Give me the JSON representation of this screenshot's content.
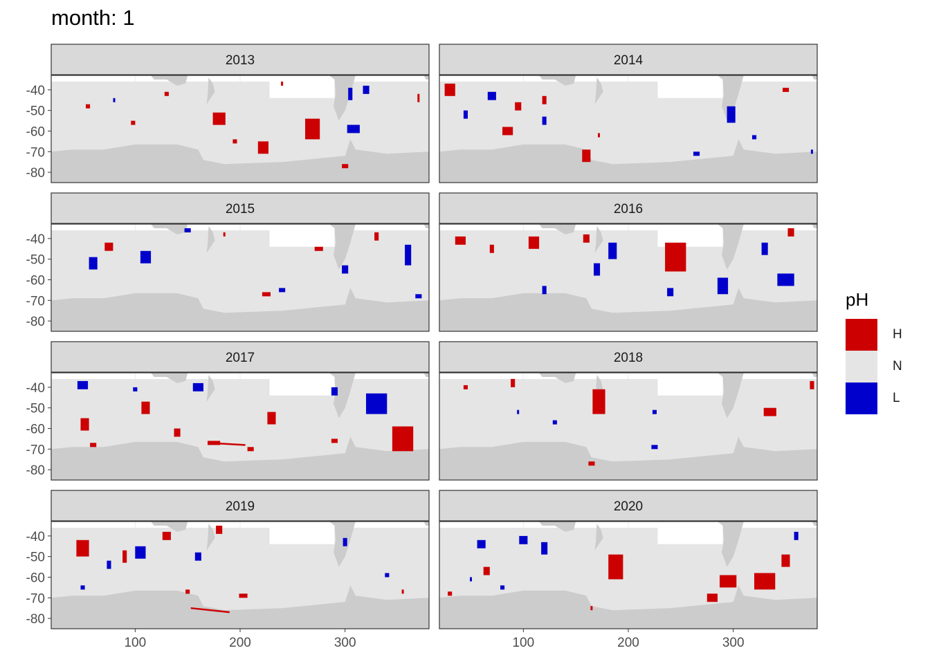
{
  "title": "month: 1",
  "colors": {
    "H": "#cc0000",
    "N": "#e5e5e5",
    "L": "#0000cc",
    "land": "#cccccc",
    "strip_bg": "#d9d9d9",
    "grid": "#ebebeb",
    "panel_border": "#333333"
  },
  "legend": {
    "title": "pH",
    "items": [
      {
        "key": "H",
        "label": "H",
        "color": "#cc0000"
      },
      {
        "key": "N",
        "label": "N",
        "color": "#e5e5e5"
      },
      {
        "key": "L",
        "label": "L",
        "color": "#0000cc"
      }
    ]
  },
  "chart_data": {
    "type": "heatmap",
    "facet_by": "year",
    "xlim": [
      20,
      380
    ],
    "ylim": [
      -85,
      -33
    ],
    "x_ticks": [
      100,
      200,
      300
    ],
    "y_ticks": [
      -40,
      -50,
      -60,
      -70,
      -80
    ],
    "categories": [
      "H",
      "N",
      "L"
    ],
    "panels": [
      {
        "year": "2013",
        "H": [
          [
            269,
            -59,
            7,
            5
          ],
          [
            222,
            -68,
            5,
            3
          ],
          [
            195,
            -65,
            2,
            1
          ],
          [
            300,
            -77,
            3,
            1
          ],
          [
            130,
            -42,
            2,
            1
          ],
          [
            55,
            -48,
            2,
            1
          ],
          [
            98,
            -56,
            2,
            1
          ],
          [
            370,
            -44,
            1,
            2
          ],
          [
            180,
            -54,
            6,
            3
          ],
          [
            240,
            -37,
            1,
            1
          ]
        ],
        "L": [
          [
            308,
            -59,
            6,
            2
          ],
          [
            320,
            -40,
            3,
            2
          ],
          [
            80,
            -45,
            1,
            1
          ],
          [
            305,
            -42,
            2,
            3
          ]
        ]
      },
      {
        "year": "2014",
        "H": [
          [
            30,
            -40,
            5,
            3
          ],
          [
            85,
            -60,
            5,
            2
          ],
          [
            160,
            -72,
            4,
            3
          ],
          [
            95,
            -48,
            3,
            2
          ],
          [
            350,
            -40,
            3,
            1
          ],
          [
            120,
            -45,
            2,
            2
          ],
          [
            172,
            -62,
            1,
            1
          ]
        ],
        "L": [
          [
            298,
            -52,
            4,
            4
          ],
          [
            70,
            -43,
            4,
            2
          ],
          [
            320,
            -63,
            2,
            1
          ],
          [
            265,
            -71,
            3,
            1
          ],
          [
            375,
            -70,
            1,
            1
          ],
          [
            45,
            -52,
            2,
            2
          ],
          [
            120,
            -55,
            2,
            2
          ]
        ]
      },
      {
        "year": "2015",
        "H": [
          [
            75,
            -44,
            4,
            2
          ],
          [
            225,
            -67,
            4,
            1
          ],
          [
            275,
            -45,
            4,
            1
          ],
          [
            330,
            -39,
            2,
            2
          ],
          [
            185,
            -38,
            1,
            1
          ]
        ],
        "L": [
          [
            60,
            -52,
            4,
            3
          ],
          [
            110,
            -49,
            5,
            3
          ],
          [
            150,
            -36,
            3,
            1
          ],
          [
            370,
            -68,
            3,
            1
          ],
          [
            360,
            -48,
            3,
            5
          ],
          [
            240,
            -65,
            3,
            1
          ],
          [
            300,
            -55,
            3,
            2
          ]
        ]
      },
      {
        "year": "2016",
        "H": [
          [
            245,
            -49,
            10,
            7
          ],
          [
            110,
            -42,
            5,
            3
          ],
          [
            160,
            -40,
            3,
            2
          ],
          [
            40,
            -41,
            5,
            2
          ],
          [
            355,
            -37,
            3,
            2
          ],
          [
            70,
            -45,
            2,
            2
          ]
        ],
        "L": [
          [
            185,
            -46,
            4,
            4
          ],
          [
            170,
            -55,
            3,
            3
          ],
          [
            290,
            -63,
            5,
            4
          ],
          [
            350,
            -60,
            8,
            3
          ],
          [
            240,
            -66,
            3,
            2
          ],
          [
            120,
            -65,
            2,
            2
          ],
          [
            330,
            -45,
            3,
            3
          ]
        ]
      },
      {
        "year": "2017",
        "H": [
          [
            355,
            -65,
            10,
            6
          ],
          [
            52,
            -58,
            4,
            3
          ],
          [
            110,
            -50,
            4,
            3
          ],
          [
            175,
            -67,
            6,
            1
          ],
          [
            230,
            -55,
            4,
            3
          ],
          [
            210,
            -70,
            3,
            1
          ],
          [
            290,
            -66,
            3,
            1
          ],
          [
            60,
            -68,
            3,
            1
          ],
          [
            140,
            -62,
            3,
            2
          ]
        ],
        "L": [
          [
            330,
            -48,
            10,
            5
          ],
          [
            290,
            -42,
            3,
            2
          ],
          [
            50,
            -39,
            5,
            2
          ],
          [
            160,
            -40,
            5,
            2
          ],
          [
            100,
            -41,
            2,
            1
          ]
        ],
        "lines": [
          [
            170,
            -67,
            205,
            -68
          ]
        ]
      },
      {
        "year": "2018",
        "H": [
          [
            172,
            -47,
            6,
            6
          ],
          [
            335,
            -52,
            6,
            2
          ],
          [
            90,
            -38,
            2,
            2
          ],
          [
            165,
            -77,
            3,
            1
          ],
          [
            375,
            -39,
            2,
            2
          ],
          [
            45,
            -40,
            2,
            1
          ]
        ],
        "L": [
          [
            225,
            -52,
            2,
            1
          ],
          [
            225,
            -69,
            3,
            1
          ],
          [
            95,
            -52,
            1,
            1
          ],
          [
            130,
            -57,
            2,
            1
          ]
        ]
      },
      {
        "year": "2019",
        "H": [
          [
            50,
            -46,
            6,
            4
          ],
          [
            203,
            -69,
            4,
            1
          ],
          [
            90,
            -50,
            2,
            3
          ],
          [
            130,
            -40,
            4,
            2
          ],
          [
            150,
            -67,
            2,
            1
          ],
          [
            180,
            -37,
            3,
            2
          ],
          [
            355,
            -67,
            1,
            1
          ]
        ],
        "L": [
          [
            105,
            -48,
            5,
            3
          ],
          [
            75,
            -54,
            2,
            2
          ],
          [
            50,
            -65,
            2,
            1
          ],
          [
            160,
            -50,
            3,
            2
          ],
          [
            300,
            -43,
            2,
            2
          ],
          [
            340,
            -59,
            2,
            1
          ]
        ],
        "lines": [
          [
            153,
            -75,
            190,
            -77
          ]
        ]
      },
      {
        "year": "2020",
        "H": [
          [
            188,
            -55,
            7,
            6
          ],
          [
            295,
            -62,
            8,
            3
          ],
          [
            330,
            -62,
            10,
            4
          ],
          [
            350,
            -52,
            4,
            3
          ],
          [
            280,
            -70,
            5,
            2
          ],
          [
            65,
            -57,
            3,
            2
          ],
          [
            165,
            -75,
            1,
            1
          ],
          [
            30,
            -68,
            2,
            1
          ]
        ],
        "L": [
          [
            60,
            -44,
            4,
            2
          ],
          [
            100,
            -42,
            4,
            2
          ],
          [
            50,
            -61,
            1,
            1
          ],
          [
            120,
            -46,
            3,
            3
          ],
          [
            360,
            -40,
            2,
            2
          ],
          [
            80,
            -65,
            2,
            1
          ]
        ]
      }
    ]
  }
}
